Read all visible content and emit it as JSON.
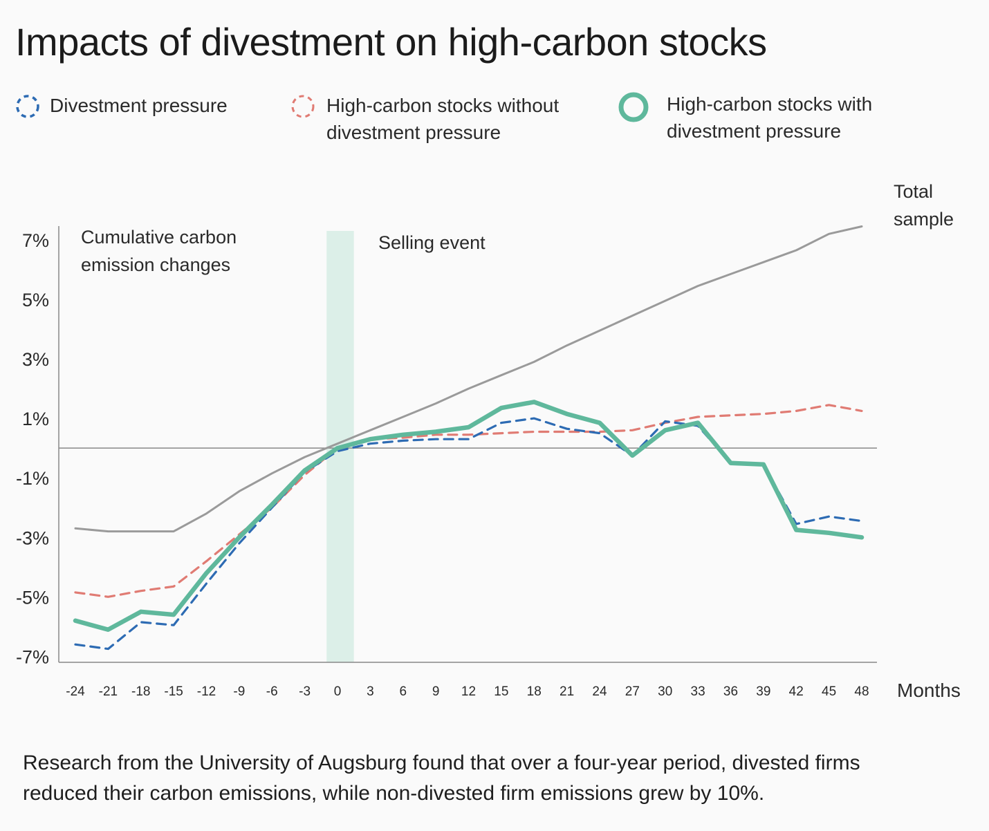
{
  "title": "Impacts of divestment on high-carbon stocks",
  "legend": [
    {
      "label_lines": [
        "Divestment pressure"
      ],
      "series": "divestment"
    },
    {
      "label_lines": [
        "High-carbon stocks without",
        "divestment pressure"
      ],
      "series": "without"
    },
    {
      "label_lines": [
        "High-carbon stocks with",
        "divestment pressure"
      ],
      "series": "with"
    }
  ],
  "colors": {
    "total": "#9a9a9a",
    "divestment": "#2d6bb3",
    "without": "#e07b73",
    "with": "#5fb89c",
    "band": "#dcefe8",
    "axis": "#888888"
  },
  "caption": "Research from the University of Augsburg found that over a four-year period, divested firms reduced their carbon emissions, while non-divested firm emissions grew by 10%.",
  "chart_data": {
    "type": "line",
    "title": "Impacts of divestment on high-carbon stocks",
    "ylabel_lines": [
      "Cumulative carbon",
      "emission changes"
    ],
    "xlabel": "Months",
    "xlim": [
      -24,
      48
    ],
    "ylim": [
      -7.2,
      7.3
    ],
    "yticks": [
      7,
      5,
      3,
      1,
      -1,
      -3,
      -5,
      -7
    ],
    "ytick_labels": [
      "7%",
      "5%",
      "3%",
      "1%",
      "-1%",
      "-3%",
      "-5%",
      "-7%"
    ],
    "xticks": [
      -24,
      -21,
      -18,
      -15,
      -12,
      -9,
      -6,
      -3,
      0,
      3,
      6,
      9,
      12,
      15,
      18,
      21,
      24,
      27,
      30,
      33,
      36,
      39,
      42,
      45,
      48
    ],
    "zero_line": 0,
    "band": {
      "label": "Selling event",
      "x_start": -1,
      "x_end": 1.5
    },
    "series": [
      {
        "key": "total",
        "name": "Total sample",
        "label_lines": [
          "Total",
          "sample"
        ],
        "style": "solid-thin",
        "points": [
          [
            -24,
            -2.7
          ],
          [
            -21,
            -2.8
          ],
          [
            -18,
            -2.8
          ],
          [
            -15,
            -2.8
          ],
          [
            -12,
            -2.2
          ],
          [
            -9,
            -1.45
          ],
          [
            -6,
            -0.85
          ],
          [
            -3,
            -0.3
          ],
          [
            0,
            0.15
          ],
          [
            3,
            0.6
          ],
          [
            6,
            1.05
          ],
          [
            9,
            1.5
          ],
          [
            12,
            2.0
          ],
          [
            15,
            2.45
          ],
          [
            18,
            2.9
          ],
          [
            21,
            3.45
          ],
          [
            24,
            3.95
          ],
          [
            27,
            4.45
          ],
          [
            30,
            4.95
          ],
          [
            33,
            5.45
          ],
          [
            36,
            5.85
          ],
          [
            39,
            6.25
          ],
          [
            42,
            6.65
          ],
          [
            45,
            7.2
          ],
          [
            48,
            7.45
          ]
        ]
      },
      {
        "key": "without",
        "name": "High-carbon stocks without divestment pressure",
        "style": "dashed",
        "points": [
          [
            -24,
            -4.85
          ],
          [
            -21,
            -5.0
          ],
          [
            -18,
            -4.8
          ],
          [
            -15,
            -4.65
          ],
          [
            -12,
            -3.8
          ],
          [
            -9,
            -2.9
          ],
          [
            -6,
            -2.0
          ],
          [
            -3,
            -0.9
          ],
          [
            0,
            0.0
          ],
          [
            3,
            0.3
          ],
          [
            6,
            0.35
          ],
          [
            9,
            0.45
          ],
          [
            12,
            0.45
          ],
          [
            15,
            0.5
          ],
          [
            18,
            0.55
          ],
          [
            21,
            0.55
          ],
          [
            24,
            0.55
          ],
          [
            27,
            0.6
          ],
          [
            30,
            0.85
          ],
          [
            33,
            1.05
          ],
          [
            36,
            1.1
          ],
          [
            39,
            1.15
          ],
          [
            42,
            1.25
          ],
          [
            45,
            1.45
          ],
          [
            48,
            1.25
          ]
        ]
      },
      {
        "key": "divestment",
        "name": "Divestment pressure",
        "style": "dashed",
        "points": [
          [
            -24,
            -6.6
          ],
          [
            -21,
            -6.75
          ],
          [
            -18,
            -5.85
          ],
          [
            -15,
            -5.95
          ],
          [
            -12,
            -4.55
          ],
          [
            -9,
            -3.2
          ],
          [
            -6,
            -2.0
          ],
          [
            -3,
            -0.8
          ],
          [
            0,
            -0.1
          ],
          [
            3,
            0.15
          ],
          [
            6,
            0.25
          ],
          [
            9,
            0.3
          ],
          [
            12,
            0.3
          ],
          [
            15,
            0.85
          ],
          [
            18,
            1.0
          ],
          [
            21,
            0.65
          ],
          [
            24,
            0.5
          ],
          [
            27,
            -0.25
          ],
          [
            30,
            0.9
          ],
          [
            33,
            0.75
          ],
          [
            36,
            -0.5
          ],
          [
            39,
            -0.55
          ],
          [
            42,
            -2.55
          ],
          [
            45,
            -2.3
          ],
          [
            48,
            -2.45
          ]
        ]
      },
      {
        "key": "with",
        "name": "High-carbon stocks with divestment pressure",
        "style": "solid-thick",
        "points": [
          [
            -24,
            -5.8
          ],
          [
            -21,
            -6.1
          ],
          [
            -18,
            -5.5
          ],
          [
            -15,
            -5.6
          ],
          [
            -12,
            -4.2
          ],
          [
            -9,
            -3.0
          ],
          [
            -6,
            -1.9
          ],
          [
            -3,
            -0.75
          ],
          [
            0,
            0.0
          ],
          [
            3,
            0.3
          ],
          [
            6,
            0.45
          ],
          [
            9,
            0.55
          ],
          [
            12,
            0.7
          ],
          [
            15,
            1.35
          ],
          [
            18,
            1.55
          ],
          [
            21,
            1.15
          ],
          [
            24,
            0.85
          ],
          [
            27,
            -0.25
          ],
          [
            30,
            0.6
          ],
          [
            33,
            0.85
          ],
          [
            36,
            -0.5
          ],
          [
            39,
            -0.55
          ],
          [
            42,
            -2.75
          ],
          [
            45,
            -2.85
          ],
          [
            48,
            -3.0
          ]
        ]
      }
    ]
  }
}
